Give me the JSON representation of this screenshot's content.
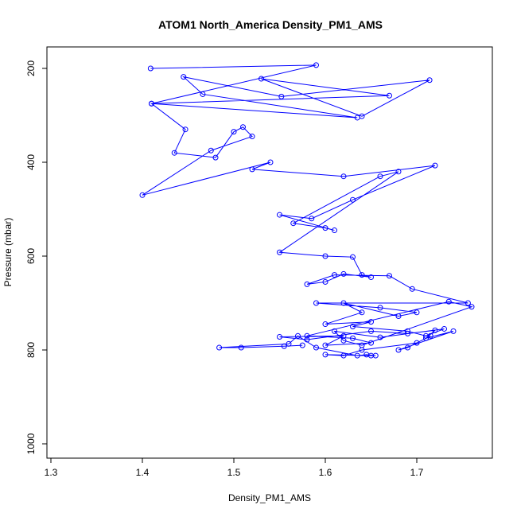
{
  "chart_data": {
    "type": "scatter",
    "title": "ATOM1 North_America Density_PM1_AMS",
    "xlabel": "Density_PM1_AMS",
    "ylabel": "Pressure (mbar)",
    "xlim": [
      1.3,
      1.76
    ],
    "ylim": [
      1030,
      160
    ],
    "y_reversed": true,
    "xticks": [
      1.3,
      1.4,
      1.5,
      1.6,
      1.7
    ],
    "xtick_labels": [
      "1.3",
      "1.4",
      "1.5",
      "1.6",
      "1.7"
    ],
    "yticks": [
      200,
      400,
      600,
      800,
      1000
    ],
    "ytick_labels": [
      "200",
      "400",
      "600",
      "800",
      "1000"
    ],
    "grid": false,
    "series_color": "#0000ff",
    "series": [
      {
        "name": "",
        "connected": true,
        "x": [
          1.409,
          1.59,
          1.41,
          1.67,
          1.53,
          1.64,
          1.714,
          1.552,
          1.445,
          1.466,
          1.635,
          1.41,
          1.447,
          1.435,
          1.48,
          1.5,
          1.51,
          1.52,
          1.475,
          1.4,
          1.54,
          1.52,
          1.62,
          1.72,
          1.63,
          1.585,
          1.55,
          1.61,
          1.6,
          1.565,
          1.66,
          1.68,
          1.55,
          1.6,
          1.63,
          1.64,
          1.65,
          1.62,
          1.6,
          1.58,
          1.61,
          1.67,
          1.695,
          1.756,
          1.59,
          1.66,
          1.7,
          1.68,
          1.62,
          1.64,
          1.6,
          1.65,
          1.63,
          1.69,
          1.71,
          1.73,
          1.66,
          1.61,
          1.62,
          1.64,
          1.76,
          1.735,
          1.58,
          1.63,
          1.65,
          1.6,
          1.62,
          1.55,
          1.58,
          1.65,
          1.69,
          1.72,
          1.71,
          1.74,
          1.68,
          1.69,
          1.715,
          1.7,
          1.64,
          1.62,
          1.6,
          1.65,
          1.655,
          1.645,
          1.635,
          1.59,
          1.57,
          1.56,
          1.484,
          1.508,
          1.555,
          1.575
        ],
        "y": [
          200,
          193,
          275,
          258,
          222,
          302,
          225,
          260,
          218,
          255,
          305,
          275,
          330,
          380,
          390,
          335,
          325,
          345,
          375,
          470,
          400,
          415,
          430,
          407,
          480,
          520,
          512,
          545,
          540,
          530,
          430,
          420,
          592,
          600,
          602,
          640,
          645,
          638,
          655,
          660,
          640,
          642,
          670,
          700,
          700,
          710,
          720,
          728,
          700,
          720,
          745,
          740,
          750,
          760,
          770,
          755,
          773,
          760,
          780,
          790,
          708,
          697,
          770,
          775,
          785,
          790,
          770,
          772,
          778,
          760,
          765,
          758,
          775,
          760,
          800,
          795,
          770,
          785,
          800,
          812,
          810,
          812,
          812,
          810,
          812,
          795,
          770,
          787,
          795,
          795,
          792,
          790
        ]
      }
    ]
  }
}
